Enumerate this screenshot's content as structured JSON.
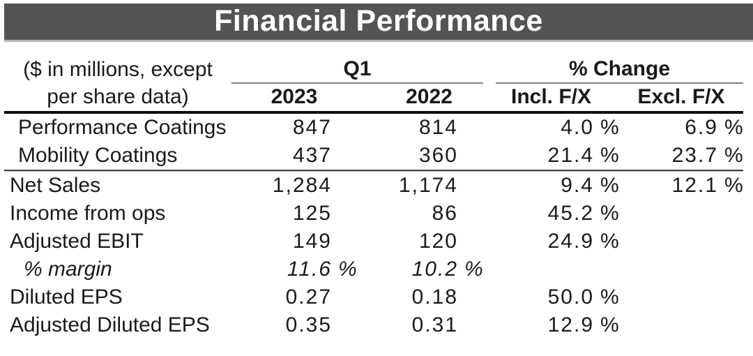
{
  "title_bar": {
    "title": "Financial Performance"
  },
  "table": {
    "unit_note_line1": "($ in millions, except",
    "unit_note_line2": "per share data)",
    "col_groups": {
      "q1": "Q1",
      "pct_change": "% Change"
    },
    "columns": {
      "y2023": "2023",
      "y2022": "2022",
      "incl_fx": "Incl. F/X",
      "excl_fx": "Excl. F/X"
    },
    "rows": [
      {
        "label": "Performance Coatings",
        "y2023": {
          "v": "847"
        },
        "y2022": {
          "v": "814"
        },
        "incl": {
          "v": "4.0",
          "s": "%"
        },
        "excl": {
          "v": "6.9",
          "s": "%"
        }
      },
      {
        "label": "Mobility Coatings",
        "y2023": {
          "v": "437"
        },
        "y2022": {
          "v": "360"
        },
        "incl": {
          "v": "21.4",
          "s": "%"
        },
        "excl": {
          "v": "23.7",
          "s": "%"
        }
      },
      {
        "label": "Net Sales",
        "y2023": {
          "v": "1,284"
        },
        "y2022": {
          "v": "1,174"
        },
        "incl": {
          "v": "9.4",
          "s": "%"
        },
        "excl": {
          "v": "12.1",
          "s": "%"
        }
      },
      {
        "label": "Income from ops",
        "y2023": {
          "v": "125"
        },
        "y2022": {
          "v": "86"
        },
        "incl": {
          "v": "45.2",
          "s": "%"
        },
        "excl": {}
      },
      {
        "label": "Adjusted EBIT",
        "y2023": {
          "v": "149"
        },
        "y2022": {
          "v": "120"
        },
        "incl": {
          "v": "24.9",
          "s": "%"
        },
        "excl": {}
      },
      {
        "label": "% margin",
        "y2023": {
          "v": "11.6",
          "s": "%"
        },
        "y2022": {
          "v": "10.2",
          "s": "%"
        },
        "incl": {},
        "excl": {}
      },
      {
        "label": "Diluted EPS",
        "y2023": {
          "v": "0.27"
        },
        "y2022": {
          "v": "0.18"
        },
        "incl": {
          "v": "50.0",
          "s": "%"
        },
        "excl": {}
      },
      {
        "label": "Adjusted Diluted EPS",
        "y2023": {
          "v": "0.35"
        },
        "y2022": {
          "v": "0.31"
        },
        "incl": {
          "v": "12.9",
          "s": "%"
        },
        "excl": {}
      }
    ]
  },
  "colors": {
    "title_bar_bg": "#545454",
    "title_text": "#ffffff",
    "rule_heavy": "#0f0f0f",
    "rule_thin": "#7f7f7f",
    "separator_dark": "#454545",
    "separator_light": "#c2c2c2",
    "body_text": "#1a1a1a"
  }
}
